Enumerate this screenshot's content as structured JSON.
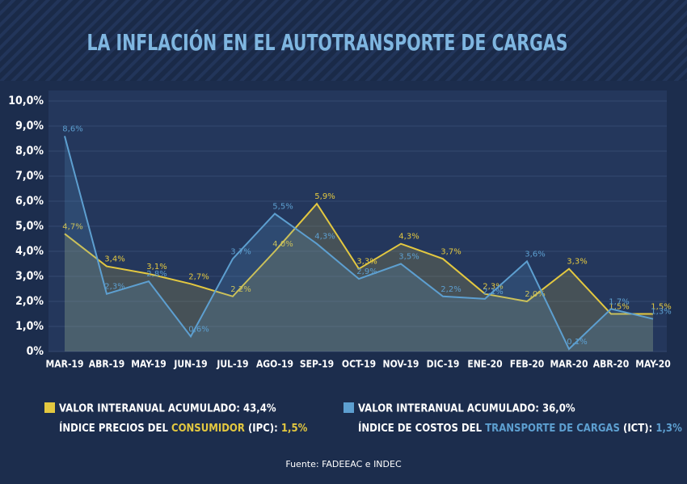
{
  "chart_data": {
    "type": "line",
    "title": "LA INFLACIÓN EN EL AUTOTRANSPORTE DE CARGAS",
    "categories": [
      "MAR-19",
      "ABR-19",
      "MAY-19",
      "JUN-19",
      "JUL-19",
      "AGO-19",
      "SEP-19",
      "OCT-19",
      "NOV-19",
      "DIC-19",
      "ENE-20",
      "FEB-20",
      "MAR-20",
      "ABR-20",
      "MAY-20"
    ],
    "ylim": [
      0,
      10
    ],
    "yticks": [
      {
        "value": 0,
        "label": "0%"
      },
      {
        "value": 1,
        "label": "1,0%"
      },
      {
        "value": 2,
        "label": "2,0%"
      },
      {
        "value": 3,
        "label": "3,0%"
      },
      {
        "value": 4,
        "label": "4,0%"
      },
      {
        "value": 5,
        "label": "5,0%"
      },
      {
        "value": 6,
        "label": "6,0%"
      },
      {
        "value": 7,
        "label": "7,0%"
      },
      {
        "value": 8,
        "label": "8,0%"
      },
      {
        "value": 9,
        "label": "9,0%"
      },
      {
        "value": 10,
        "label": "10,0%"
      }
    ],
    "grid": true,
    "series": [
      {
        "name": "VALOR INTERANUAL ACUMULADO: 43,4%",
        "color": "#e3c840",
        "description_parts": [
          "ÍNDICE PRECIOS DEL ",
          "CONSUMIDOR",
          " (IPC): ",
          "1,5%"
        ],
        "values": [
          4.7,
          3.4,
          3.1,
          2.7,
          2.2,
          4.0,
          5.9,
          3.3,
          4.3,
          3.7,
          2.3,
          2.0,
          3.3,
          1.5,
          1.5
        ],
        "value_labels": [
          "4,7%",
          "3,4%",
          "3,1%",
          "2,7%",
          "2,2%",
          "4,0%",
          "5,9%",
          "3,3%",
          "4,3%",
          "3,7%",
          "2,3%",
          "2,0%",
          "3,3%",
          "1,5%",
          "1,5%"
        ]
      },
      {
        "name": "VALOR INTERANUAL ACUMULADO: 36,0%",
        "color": "#5d9fd0",
        "description_parts": [
          "ÍNDICE DE COSTOS DEL ",
          "TRANSPORTE DE CARGAS",
          " (ICT): ",
          "1,3%"
        ],
        "values": [
          8.6,
          2.3,
          2.8,
          0.6,
          3.7,
          5.5,
          4.3,
          2.9,
          3.5,
          2.2,
          2.1,
          3.6,
          0.1,
          1.7,
          1.3
        ],
        "value_labels": [
          "8,6%",
          "2,3%",
          "2,8%",
          "0,6%",
          "3,7%",
          "5,5%",
          "4,3%",
          "2,9%",
          "3,5%",
          "2,2%",
          "2,1%",
          "3,6%",
          "0,1%",
          "1,7%",
          "1,3%"
        ]
      }
    ],
    "source": "Fuente: FADEEAC e INDEC"
  }
}
